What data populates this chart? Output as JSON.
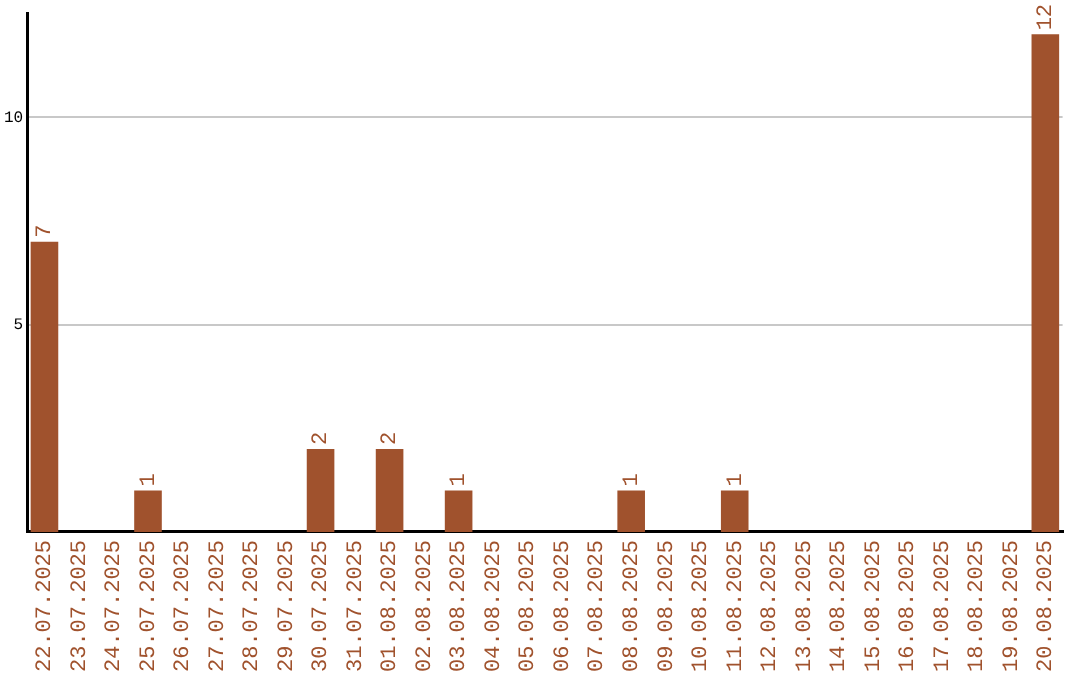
{
  "chart_data": {
    "type": "bar",
    "categories": [
      "22.07.2025",
      "23.07.2025",
      "24.07.2025",
      "25.07.2025",
      "26.07.2025",
      "27.07.2025",
      "28.07.2025",
      "29.07.2025",
      "30.07.2025",
      "31.07.2025",
      "01.08.2025",
      "02.08.2025",
      "03.08.2025",
      "04.08.2025",
      "05.08.2025",
      "06.08.2025",
      "07.08.2025",
      "08.08.2025",
      "09.08.2025",
      "10.08.2025",
      "11.08.2025",
      "12.08.2025",
      "13.08.2025",
      "14.08.2025",
      "15.08.2025",
      "16.08.2025",
      "17.08.2025",
      "18.08.2025",
      "19.08.2025",
      "20.08.2025"
    ],
    "values": [
      7,
      0,
      0,
      1,
      0,
      0,
      0,
      0,
      2,
      0,
      2,
      0,
      1,
      0,
      0,
      0,
      0,
      1,
      0,
      0,
      1,
      0,
      0,
      0,
      0,
      0,
      0,
      0,
      0,
      12
    ],
    "value_labels": [
      "7",
      null,
      null,
      "1",
      null,
      null,
      null,
      null,
      "2",
      null,
      "2",
      null,
      "1",
      null,
      null,
      null,
      null,
      "1",
      null,
      null,
      "1",
      null,
      null,
      null,
      null,
      null,
      null,
      null,
      null,
      "12"
    ],
    "color": "#a0522d",
    "ylim": [
      0,
      12.5
    ],
    "yticks": [
      5,
      10
    ],
    "grid": "y",
    "legend": false
  }
}
